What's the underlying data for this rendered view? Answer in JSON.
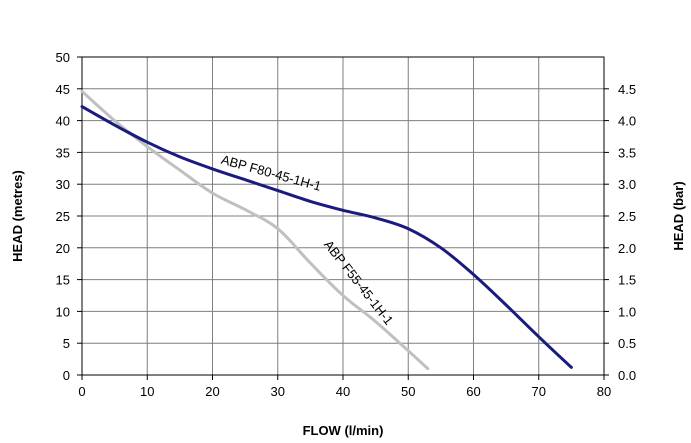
{
  "chart_data": {
    "type": "line",
    "xlabel": "FLOW (l/min)",
    "ylabel": "HEAD (metres)",
    "y2label": "HEAD (bar)",
    "xlim": [
      0,
      80
    ],
    "ylim": [
      0,
      50
    ],
    "y2lim": [
      0,
      5
    ],
    "x_ticks": [
      "0",
      "10",
      "20",
      "30",
      "40",
      "50",
      "60",
      "70",
      "80"
    ],
    "y_ticks": [
      "0",
      "5",
      "10",
      "15",
      "20",
      "25",
      "30",
      "35",
      "40",
      "45",
      "50"
    ],
    "y2_ticks": [
      "0.0",
      "0.5",
      "1.0",
      "1.5",
      "2.0",
      "2.5",
      "3.0",
      "3.5",
      "4.0",
      "4.5"
    ],
    "grid": true,
    "series": [
      {
        "name": "ABP F80-45-1H-1",
        "color": "#1a1a80",
        "x": [
          0,
          5,
          10,
          15,
          20,
          25,
          30,
          35,
          40,
          45,
          50,
          55,
          60,
          65,
          70,
          75
        ],
        "y": [
          42.2,
          39.3,
          36.6,
          34.3,
          32.4,
          30.7,
          29.0,
          27.3,
          25.9,
          24.7,
          23.0,
          20.0,
          15.8,
          11.0,
          6.0,
          1.2
        ]
      },
      {
        "name": "ABP F55-45-1H-1",
        "color": "#c0c0c0",
        "x": [
          0,
          5,
          10,
          15,
          20,
          25,
          30,
          35,
          40,
          45,
          50,
          53
        ],
        "y": [
          44.6,
          40.0,
          35.9,
          32.2,
          28.6,
          26.0,
          23.0,
          17.6,
          12.5,
          8.4,
          3.8,
          1.0
        ]
      }
    ]
  }
}
